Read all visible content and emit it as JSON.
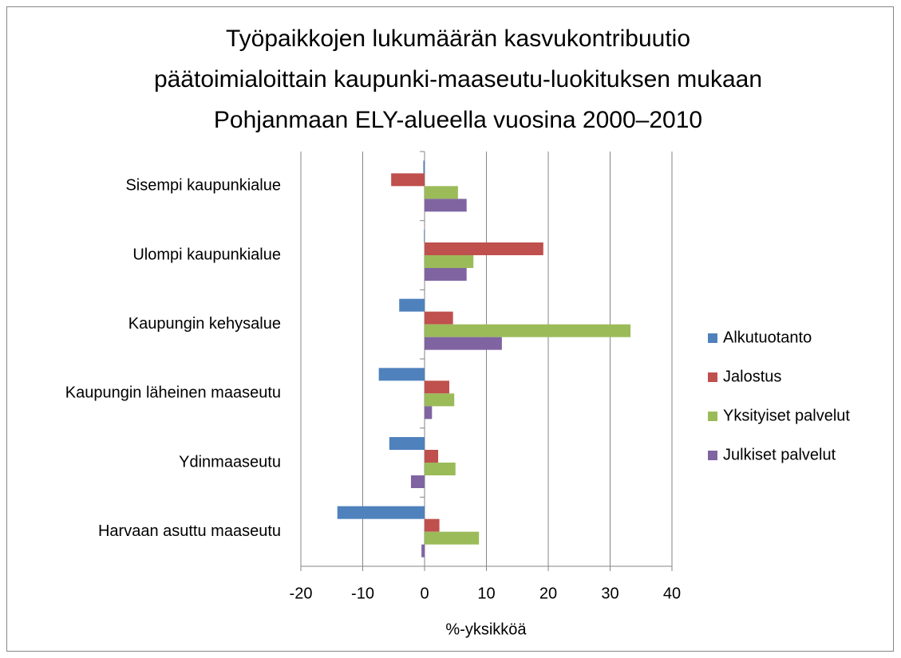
{
  "chart_data": {
    "type": "hbar",
    "title": [
      "Työpaikkojen lukumäärän kasvukontribuutio",
      "päätoimialoittain kaupunki-maaseutu-luokituksen mukaan",
      "Pohjanmaan ELY-alueella vuosina 2000–2010"
    ],
    "x_label": "%-yksikköä",
    "categories": [
      "Sisempi kaupunkialue",
      "Ulompi kaupunkialue",
      "Kaupungin kehysalue",
      "Kaupungin läheinen maaseutu",
      "Ydinmaaseutu",
      "Harvaan asuttu maaseutu"
    ],
    "series": [
      {
        "name": "Alkutuotanto",
        "color": "#4f81bd",
        "values": [
          -0.2,
          -0.1,
          -4.1,
          -7.4,
          -5.7,
          -14.1
        ]
      },
      {
        "name": "Jalostus",
        "color": "#c0504d",
        "values": [
          -5.4,
          19.2,
          4.6,
          4.0,
          2.2,
          2.4
        ]
      },
      {
        "name": "Yksityiset palvelut",
        "color": "#9bbb59",
        "values": [
          5.4,
          7.9,
          33.3,
          4.8,
          5.0,
          8.8
        ]
      },
      {
        "name": "Julkiset palvelut",
        "color": "#8064a2",
        "values": [
          6.8,
          6.8,
          12.5,
          1.2,
          -2.2,
          -0.5
        ]
      }
    ],
    "xlim": [
      -20,
      40
    ],
    "xticks": [
      -20,
      -10,
      0,
      10,
      20,
      30,
      40
    ],
    "grid": true,
    "legend": "right"
  }
}
